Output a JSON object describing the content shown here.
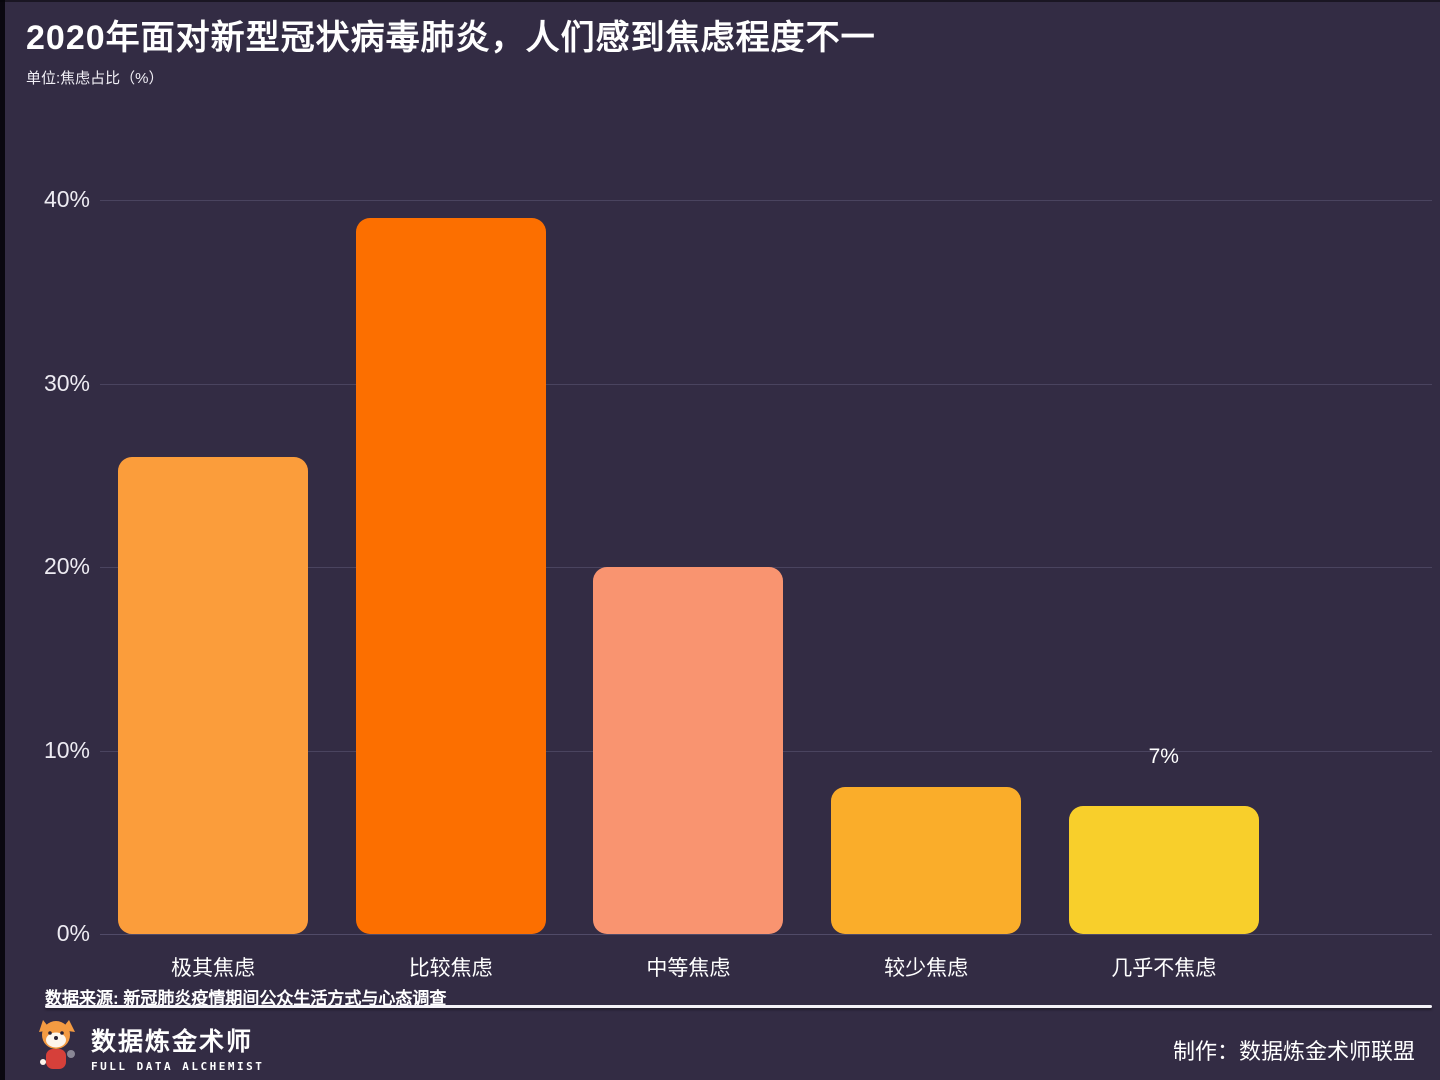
{
  "page": {
    "title": "2020年面对新型冠状病毒肺炎，人们感到焦虑程度不一",
    "subtitle": "单位:焦虑占比（%）",
    "source": "数据来源: 新冠肺炎疫情期间公众生活方式与心态调查",
    "credit": "制作：数据炼金术师联盟"
  },
  "logo": {
    "name": "数据炼金术师",
    "subname": "FULL DATA ALCHEMIST"
  },
  "colors": {
    "background": "#332C44",
    "gridline": "#4A445F",
    "text": "#FFFFFF",
    "mascot_orange": "#F49B42",
    "mascot_red": "#D6403A"
  },
  "chart_data": {
    "type": "bar",
    "title": "2020年面对新型冠状病毒肺炎，人们感到焦虑程度不一",
    "ylabel": "焦虑占比（%）",
    "categories": [
      "极其焦虑",
      "比较焦虑",
      "中等焦虑",
      "较少焦虑",
      "几乎不焦虑"
    ],
    "values": [
      26,
      39,
      20,
      8,
      7
    ],
    "value_labels": [
      "",
      "",
      "",
      "",
      "7%"
    ],
    "bar_colors": [
      "#FB9D3B",
      "#FC6F00",
      "#F99470",
      "#FAAD2A",
      "#F8CF2B"
    ],
    "ylim": [
      0,
      40
    ],
    "ytick_values": [
      0,
      10,
      20,
      30,
      40
    ],
    "ytick_labels": [
      "0%",
      "10%",
      "20%",
      "30%",
      "40%"
    ],
    "grid": true,
    "legend": false
  }
}
